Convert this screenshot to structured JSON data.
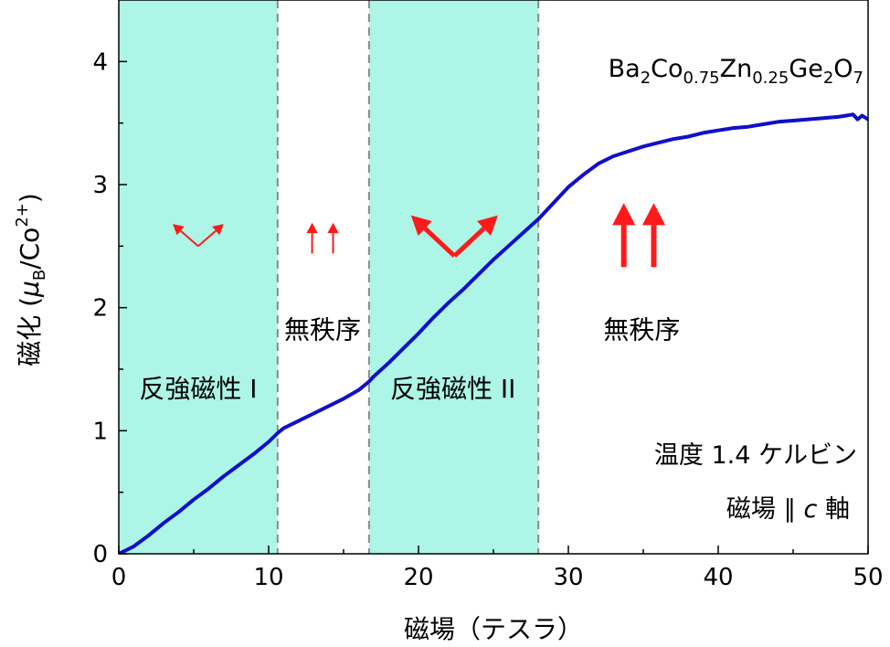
{
  "chart_data": {
    "type": "line",
    "title": "",
    "xlabel": "磁場（テスラ）",
    "ylabel": {
      "prefix": "磁化 (",
      "mu": "μ",
      "mu_sub": "B",
      "slash": "/Co",
      "sup": "2+",
      "suffix": ")"
    },
    "xlim": [
      0,
      50
    ],
    "ylim": [
      0,
      4.5
    ],
    "xticks": [
      0,
      10,
      20,
      30,
      40,
      50
    ],
    "yticks": [
      0,
      1,
      2,
      3,
      4
    ],
    "compound": {
      "parts": [
        {
          "t": "Ba",
          "s": "n"
        },
        {
          "t": "2",
          "s": "sub"
        },
        {
          "t": "Co",
          "s": "n"
        },
        {
          "t": "0.75",
          "s": "sub"
        },
        {
          "t": "Zn",
          "s": "n"
        },
        {
          "t": "0.25",
          "s": "sub"
        },
        {
          "t": "Ge",
          "s": "n"
        },
        {
          "t": "2",
          "s": "sub"
        },
        {
          "t": "O",
          "s": "n"
        },
        {
          "t": "7",
          "s": "sub"
        }
      ]
    },
    "conditions": {
      "line1": "温度 1.4 ケルビン",
      "line2_a": "磁場 ∥ ",
      "line2_c": "c",
      "line2_b": " 軸"
    },
    "regions": [
      {
        "x0": 0,
        "x1": 10.6,
        "label": "反強磁性 I",
        "label_x": 5.3,
        "label_y": 1.27,
        "shaded": true
      },
      {
        "x0": 10.6,
        "x1": 16.7,
        "label": "無秩序",
        "label_x": 13.6,
        "label_y": 1.75,
        "shaded": false
      },
      {
        "x0": 16.7,
        "x1": 28.0,
        "label": "反強磁性 II",
        "label_x": 22.3,
        "label_y": 1.27,
        "shaded": true
      },
      {
        "x0": 28.0,
        "x1": 50,
        "label": "無秩序",
        "label_x": 34.9,
        "label_y": 1.75,
        "shaded": false
      }
    ],
    "boundaries": [
      10.6,
      16.7,
      28.0
    ],
    "shade_color": "#adf5e6",
    "series": [
      {
        "color": "#1010c8",
        "x": [
          0,
          0.5,
          1,
          2,
          3,
          4,
          5,
          6,
          7,
          8,
          9,
          10,
          10.6,
          11,
          12,
          13,
          14,
          15,
          16,
          16.7,
          17,
          18,
          19,
          20,
          21,
          22,
          23,
          24,
          25,
          26,
          27,
          28,
          29,
          30,
          31,
          32,
          33,
          34,
          35,
          36,
          37,
          38,
          39,
          40,
          41,
          42,
          43,
          44,
          45,
          46,
          47,
          48,
          48.5,
          49,
          49.3,
          49.6,
          50
        ],
        "y": [
          0.0,
          0.03,
          0.06,
          0.15,
          0.25,
          0.34,
          0.44,
          0.53,
          0.63,
          0.72,
          0.81,
          0.91,
          0.98,
          1.02,
          1.08,
          1.14,
          1.2,
          1.26,
          1.33,
          1.4,
          1.44,
          1.55,
          1.67,
          1.79,
          1.92,
          2.04,
          2.15,
          2.27,
          2.39,
          2.5,
          2.61,
          2.72,
          2.85,
          2.98,
          3.08,
          3.17,
          3.23,
          3.27,
          3.31,
          3.34,
          3.37,
          3.39,
          3.42,
          3.44,
          3.46,
          3.47,
          3.49,
          3.51,
          3.52,
          3.53,
          3.54,
          3.55,
          3.56,
          3.57,
          3.53,
          3.56,
          3.53
        ]
      }
    ],
    "arrows": [
      {
        "x": 5.3,
        "y": 2.5,
        "dx": -1.7,
        "dy": 0.18,
        "w": 2
      },
      {
        "x": 5.3,
        "y": 2.5,
        "dx": 1.7,
        "dy": 0.18,
        "w": 2
      },
      {
        "x": 12.9,
        "y": 2.44,
        "dx": 0,
        "dy": 0.25,
        "w": 2
      },
      {
        "x": 14.3,
        "y": 2.44,
        "dx": 0,
        "dy": 0.25,
        "w": 2
      },
      {
        "x": 22.4,
        "y": 2.42,
        "dx": -2.9,
        "dy": 0.33,
        "w": 5
      },
      {
        "x": 22.4,
        "y": 2.42,
        "dx": 2.9,
        "dy": 0.33,
        "w": 5
      },
      {
        "x": 33.7,
        "y": 2.33,
        "dx": 0,
        "dy": 0.52,
        "w": 6
      },
      {
        "x": 35.7,
        "y": 2.33,
        "dx": 0,
        "dy": 0.52,
        "w": 6
      }
    ],
    "arrow_color": "#ff1a1a",
    "grid": false,
    "legend": "none"
  }
}
